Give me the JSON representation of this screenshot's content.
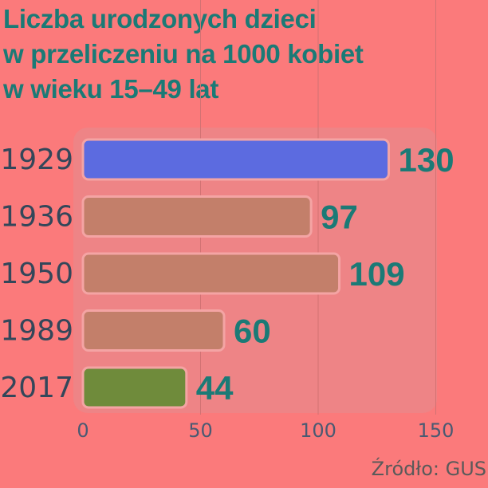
{
  "title_lines": [
    "Liczba urodzonych dzieci",
    "w przeliczeniu na 1000 kobiet",
    "w wieku 15–49 lat"
  ],
  "source": "Źródło: GUS",
  "colors": {
    "background": "#fb7a7b",
    "panel": "#ee8486",
    "title": "#1b7a76",
    "value_labels": "#1b7a76",
    "bar_default": "#c37f6a",
    "bar_1929": "#5c6be0",
    "bar_2017": "#6f8b3b",
    "bar_border": "#f4a4a4",
    "grid": "#d27273",
    "category_labels": "#33475a",
    "tick_labels": "#4a5a72"
  },
  "chart_data": {
    "type": "bar",
    "orientation": "horizontal",
    "categories": [
      "1929",
      "1936",
      "1950",
      "1989",
      "2017"
    ],
    "values": [
      130,
      97,
      109,
      60,
      44
    ],
    "highlight": {
      "1929": "bar_1929",
      "2017": "bar_2017"
    },
    "xlim": [
      0,
      150
    ],
    "xticks": [
      0,
      50,
      100,
      150
    ],
    "grid": true,
    "title": "Liczba urodzonych dzieci w przeliczeniu na 1000 kobiet w wieku 15–49 lat",
    "xlabel": "",
    "ylabel": ""
  }
}
